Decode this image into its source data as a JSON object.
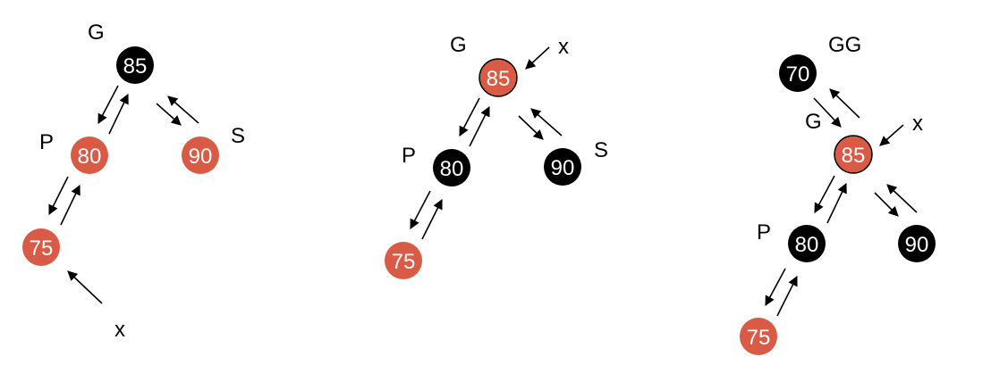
{
  "colors": {
    "red": "#D95A45",
    "black": "#000000",
    "white": "#FFFFFF"
  },
  "diagrams": [
    {
      "nodes": [
        {
          "id": "n85",
          "value": "85",
          "color": "black"
        },
        {
          "id": "n80",
          "value": "80",
          "color": "red"
        },
        {
          "id": "n90",
          "value": "90",
          "color": "red"
        },
        {
          "id": "n75",
          "value": "75",
          "color": "red"
        }
      ],
      "labels": {
        "G": "G",
        "P": "P",
        "S": "S",
        "x": "x"
      }
    },
    {
      "nodes": [
        {
          "id": "n85",
          "value": "85",
          "color": "red"
        },
        {
          "id": "n80",
          "value": "80",
          "color": "black"
        },
        {
          "id": "n90",
          "value": "90",
          "color": "black"
        },
        {
          "id": "n75",
          "value": "75",
          "color": "red"
        }
      ],
      "labels": {
        "G": "G",
        "P": "P",
        "S": "S",
        "x": "x"
      }
    },
    {
      "nodes": [
        {
          "id": "n70",
          "value": "70",
          "color": "black"
        },
        {
          "id": "n85",
          "value": "85",
          "color": "red"
        },
        {
          "id": "n80",
          "value": "80",
          "color": "black"
        },
        {
          "id": "n90",
          "value": "90",
          "color": "black"
        },
        {
          "id": "n75",
          "value": "75",
          "color": "red"
        }
      ],
      "labels": {
        "GG": "GG",
        "G": "G",
        "P": "P",
        "x": "x"
      }
    }
  ]
}
